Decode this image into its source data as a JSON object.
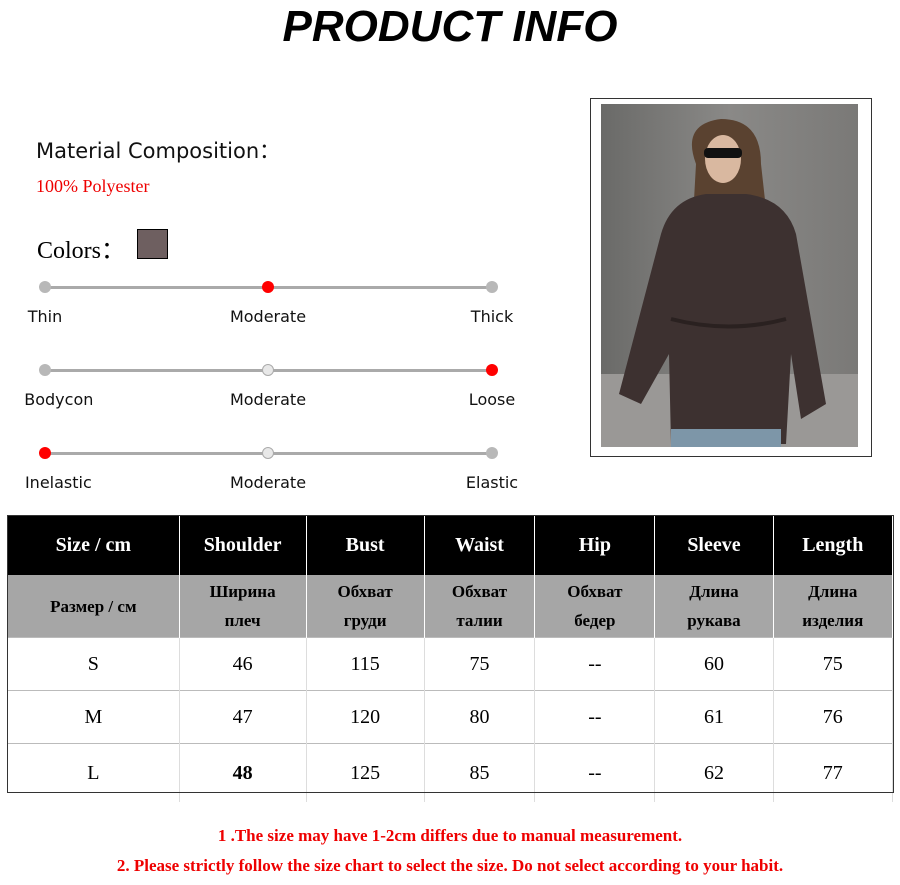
{
  "title": "PRODUCT INFO",
  "material": {
    "label": "Material Composition：",
    "value": "100% Polyester"
  },
  "colors": {
    "label": "Colors：",
    "swatches": [
      "#6e5f60"
    ]
  },
  "scales": [
    {
      "labels": [
        "Thin",
        "Moderate",
        "Thick"
      ],
      "selected": 1
    },
    {
      "labels": [
        "Bodycon",
        "Moderate",
        "Loose"
      ],
      "selected": 2
    },
    {
      "labels": [
        "Inelastic",
        "Moderate",
        "Elastic"
      ],
      "selected": 0
    }
  ],
  "table": {
    "headers": [
      "Size / cm",
      "Shoulder",
      "Bust",
      "Waist",
      "Hip",
      "Sleeve",
      "Length"
    ],
    "subheaders": [
      [
        "Размер / см"
      ],
      [
        "Ширина",
        "плеч"
      ],
      [
        "Обхват",
        "груди"
      ],
      [
        "Обхват",
        "талии"
      ],
      [
        "Обхват",
        "бедер"
      ],
      [
        "Длина",
        "рукава"
      ],
      [
        "Длина",
        "изделия"
      ]
    ],
    "rows": [
      [
        "S",
        "46",
        "115",
        "75",
        "--",
        "60",
        "75"
      ],
      [
        "M",
        "47",
        "120",
        "80",
        "--",
        "61",
        "76"
      ],
      [
        "L",
        "48",
        "125",
        "85",
        "--",
        "62",
        "77"
      ]
    ]
  },
  "notes": [
    "1 .The size may have 1-2cm differs due to manual measurement.",
    "2. Please strictly follow the size chart to select the size. Do not select according to your habit."
  ]
}
